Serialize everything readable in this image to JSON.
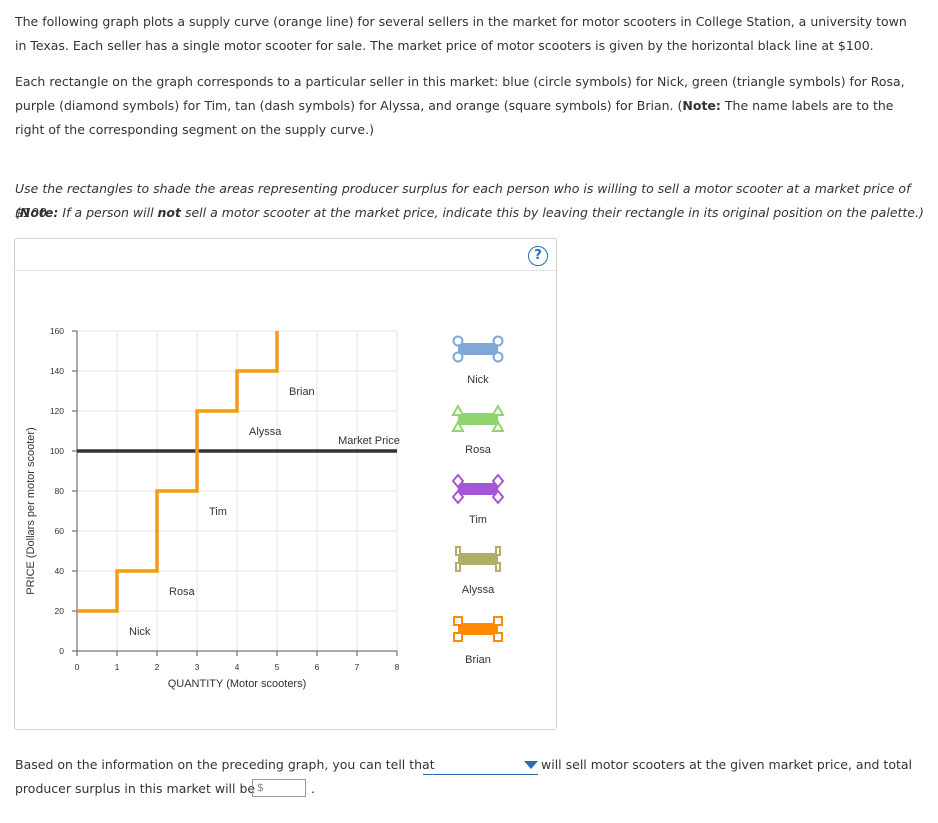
{
  "text": {
    "para1": "The following graph plots a supply curve (orange line) for several sellers in the market for motor scooters in College Station, a university town in Texas. Each seller has a single motor scooter for sale. The market price of motor scooters is given by the horizontal black line at $100.",
    "para2_a": "Each rectangle on the graph corresponds to a particular seller in this market: blue (circle symbols) for Nick, green (triangle symbols) for Rosa, purple (diamond symbols) for Tim, tan (dash symbols) for Alyssa, and orange (square symbols) for Brian. (",
    "para2_note": "Note:",
    "para2_b": " The name labels are to the right of the corresponding segment on the supply curve.)",
    "inst1": "Use the rectangles to shade the areas representing producer surplus for each person who is willing to sell a motor scooter at a market price of $100.",
    "inst2_a": "(",
    "inst2_note": "Note:",
    "inst2_b": " If a person will ",
    "inst2_not": "not",
    "inst2_c": " sell a motor scooter at the market price, indicate this by leaving their rectangle in its original position on the palette.)",
    "help_glyph": "?",
    "bottom1_a": "Based on the information on the preceding graph, you can tell that",
    "bottom1_b": "will sell motor scooters at the given market price, and total",
    "bottom2": "producer surplus in this market will be",
    "currency": "$",
    "period": "."
  },
  "chart_data": {
    "type": "line",
    "xlabel": "QUANTITY (Motor scooters)",
    "ylabel": "PRICE (Dollars per motor scooter)",
    "xlim": [
      0,
      8
    ],
    "ylim": [
      0,
      160
    ],
    "xticks": [
      0,
      1,
      2,
      3,
      4,
      5,
      6,
      7,
      8
    ],
    "yticks": [
      0,
      20,
      40,
      60,
      80,
      100,
      120,
      140,
      160
    ],
    "market_price": 100,
    "market_price_label": "Market Price",
    "supply_color": "#f39c12",
    "market_color": "#333333",
    "supply_steps": [
      {
        "seller": "Nick",
        "x0": 0,
        "x1": 1,
        "price": 20
      },
      {
        "seller": "Rosa",
        "x0": 1,
        "x1": 2,
        "price": 40
      },
      {
        "seller": "Tim",
        "x0": 2,
        "x1": 3,
        "price": 80
      },
      {
        "seller": "Alyssa",
        "x0": 3,
        "x1": 4,
        "price": 120
      },
      {
        "seller": "Brian",
        "x0": 4,
        "x1": 5,
        "price": 140
      }
    ],
    "supply_end_y": 160
  },
  "palette": [
    {
      "name": "Nick",
      "color": "#7fa7d8",
      "symbol": "circle"
    },
    {
      "name": "Rosa",
      "color": "#8fd46e",
      "symbol": "triangle"
    },
    {
      "name": "Tim",
      "color": "#a455d8",
      "symbol": "diamond"
    },
    {
      "name": "Alyssa",
      "color": "#b0ad66",
      "symbol": "dash"
    },
    {
      "name": "Brian",
      "color": "#ff8c00",
      "symbol": "square"
    }
  ]
}
